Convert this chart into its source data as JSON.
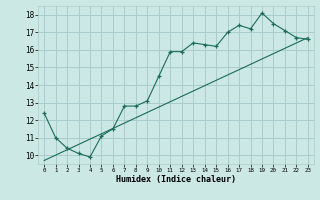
{
  "title": "",
  "xlabel": "Humidex (Indice chaleur)",
  "bg_color": "#cce8e4",
  "grid_color": "#aacccc",
  "line_color": "#1a6b5a",
  "xlim": [
    -0.5,
    23.5
  ],
  "ylim": [
    9.5,
    18.5
  ],
  "xticks": [
    0,
    1,
    2,
    3,
    4,
    5,
    6,
    7,
    8,
    9,
    10,
    11,
    12,
    13,
    14,
    15,
    16,
    17,
    18,
    19,
    20,
    21,
    22,
    23
  ],
  "yticks": [
    10,
    11,
    12,
    13,
    14,
    15,
    16,
    17,
    18
  ],
  "series1_x": [
    0,
    1,
    2,
    3,
    4,
    5,
    6,
    7,
    8,
    9,
    10,
    11,
    12,
    13,
    14,
    15,
    16,
    17,
    18,
    19,
    20,
    21,
    22,
    23
  ],
  "series1_y": [
    12.4,
    11.0,
    10.4,
    10.1,
    9.9,
    11.1,
    11.5,
    12.8,
    12.8,
    13.1,
    14.5,
    15.9,
    15.9,
    16.4,
    16.3,
    16.2,
    17.0,
    17.4,
    17.2,
    18.1,
    17.5,
    17.1,
    16.7,
    16.6
  ],
  "series2_x": [
    0,
    23
  ],
  "series2_y": [
    9.7,
    16.7
  ],
  "marker": "+"
}
